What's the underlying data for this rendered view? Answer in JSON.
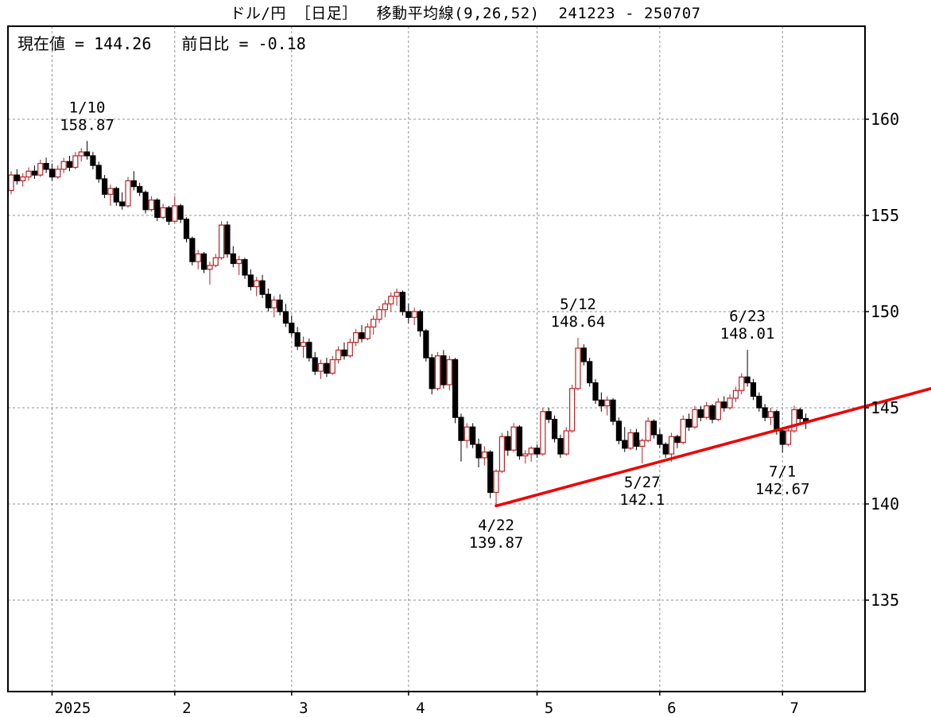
{
  "title": "ドル/円 ［日足］  移動平均線(9,26,52)  241223 - 250707",
  "info": {
    "current_label": "現在値",
    "equals": "=",
    "current_value": "144.26",
    "change_label": "前日比",
    "change_value": "-0.18"
  },
  "chart_data": {
    "type": "candlestick",
    "instrument": "ドル/円",
    "timeframe": "日足",
    "ma_params": "9,26,52",
    "date_range": "241223 - 250707",
    "grid": true,
    "ylim": [
      130.3,
      164.8
    ],
    "y_ticks": [
      160,
      155,
      150,
      145,
      140,
      135
    ],
    "x_ticks": [
      {
        "label": "2025",
        "index": 7
      },
      {
        "label": "2",
        "index": 28
      },
      {
        "label": "3",
        "index": 48
      },
      {
        "label": "4",
        "index": 68
      },
      {
        "label": "5",
        "index": 90
      },
      {
        "label": "6",
        "index": 111
      },
      {
        "label": "7",
        "index": 132
      }
    ],
    "candles": [
      [
        156.3,
        157.3,
        156.1,
        157.1
      ],
      [
        157.1,
        157.4,
        156.6,
        156.8
      ],
      [
        156.8,
        157.2,
        156.5,
        157.0
      ],
      [
        157.0,
        157.5,
        156.8,
        157.3
      ],
      [
        157.3,
        157.6,
        156.9,
        157.1
      ],
      [
        157.1,
        157.9,
        157.0,
        157.7
      ],
      [
        157.7,
        158.0,
        157.2,
        157.4
      ],
      [
        157.4,
        157.7,
        156.8,
        157.0
      ],
      [
        157.0,
        157.6,
        156.9,
        157.4
      ],
      [
        157.4,
        158.0,
        157.2,
        157.8
      ],
      [
        157.8,
        158.1,
        157.3,
        157.5
      ],
      [
        157.5,
        158.3,
        157.4,
        158.1
      ],
      [
        158.1,
        158.5,
        157.8,
        158.3
      ],
      [
        158.3,
        158.87,
        157.9,
        158.1
      ],
      [
        158.1,
        158.3,
        157.4,
        157.6
      ],
      [
        157.6,
        157.8,
        156.7,
        156.9
      ],
      [
        156.9,
        157.1,
        155.9,
        156.1
      ],
      [
        156.1,
        156.6,
        155.5,
        156.4
      ],
      [
        156.4,
        156.5,
        155.5,
        155.7
      ],
      [
        155.7,
        156.2,
        155.3,
        155.5
      ],
      [
        155.5,
        157.0,
        155.4,
        156.8
      ],
      [
        156.8,
        157.3,
        156.3,
        156.5
      ],
      [
        156.5,
        156.7,
        156.0,
        156.2
      ],
      [
        156.2,
        156.3,
        155.1,
        155.3
      ],
      [
        155.3,
        156.0,
        155.2,
        155.8
      ],
      [
        155.8,
        155.9,
        154.7,
        154.9
      ],
      [
        154.9,
        155.6,
        154.8,
        155.4
      ],
      [
        155.4,
        155.5,
        154.5,
        154.7
      ],
      [
        154.7,
        156.0,
        154.6,
        155.5
      ],
      [
        155.5,
        155.6,
        154.6,
        154.8
      ],
      [
        154.8,
        154.9,
        153.6,
        153.8
      ],
      [
        153.8,
        153.9,
        152.4,
        152.6
      ],
      [
        152.6,
        153.2,
        152.2,
        153.0
      ],
      [
        153.0,
        153.1,
        152.0,
        152.2
      ],
      [
        152.2,
        152.6,
        151.4,
        152.4
      ],
      [
        152.4,
        153.0,
        152.3,
        152.8
      ],
      [
        152.8,
        154.7,
        152.7,
        154.5
      ],
      [
        154.5,
        154.7,
        152.8,
        153.0
      ],
      [
        153.0,
        153.4,
        152.3,
        152.5
      ],
      [
        152.5,
        152.9,
        151.9,
        152.7
      ],
      [
        152.7,
        152.8,
        151.7,
        151.9
      ],
      [
        151.9,
        152.2,
        151.1,
        151.3
      ],
      [
        151.3,
        151.8,
        150.8,
        151.6
      ],
      [
        151.6,
        151.9,
        150.7,
        150.9
      ],
      [
        150.9,
        151.2,
        150.0,
        150.2
      ],
      [
        150.2,
        150.8,
        149.7,
        150.6
      ],
      [
        150.6,
        150.9,
        149.8,
        150.0
      ],
      [
        150.0,
        150.4,
        149.2,
        149.4
      ],
      [
        149.4,
        149.8,
        148.7,
        148.9
      ],
      [
        148.9,
        149.2,
        148.0,
        148.2
      ],
      [
        148.2,
        148.7,
        147.6,
        148.4
      ],
      [
        148.4,
        148.6,
        147.4,
        147.6
      ],
      [
        147.6,
        147.9,
        146.7,
        146.9
      ],
      [
        146.9,
        147.5,
        146.5,
        147.3
      ],
      [
        147.3,
        147.6,
        146.6,
        146.8
      ],
      [
        146.8,
        147.7,
        146.7,
        147.5
      ],
      [
        147.5,
        148.2,
        147.3,
        148.0
      ],
      [
        148.0,
        148.4,
        147.5,
        147.7
      ],
      [
        147.7,
        148.6,
        147.6,
        148.4
      ],
      [
        148.4,
        149.1,
        148.2,
        148.9
      ],
      [
        148.9,
        149.3,
        148.4,
        148.6
      ],
      [
        148.6,
        149.4,
        148.5,
        149.2
      ],
      [
        149.2,
        149.8,
        148.8,
        149.6
      ],
      [
        149.6,
        150.3,
        149.4,
        150.1
      ],
      [
        150.1,
        150.6,
        149.7,
        150.4
      ],
      [
        150.4,
        151.0,
        150.0,
        150.8
      ],
      [
        150.8,
        151.2,
        150.3,
        151.0
      ],
      [
        151.0,
        151.1,
        149.8,
        150.0
      ],
      [
        150.0,
        150.4,
        149.4,
        149.7
      ],
      [
        149.7,
        150.2,
        149.3,
        150.0
      ],
      [
        150.0,
        150.1,
        148.7,
        149.0
      ],
      [
        149.0,
        149.1,
        147.4,
        147.6
      ],
      [
        147.6,
        147.8,
        145.7,
        146.0
      ],
      [
        146.0,
        147.9,
        145.9,
        147.7
      ],
      [
        147.7,
        148.0,
        146.0,
        146.2
      ],
      [
        146.2,
        147.7,
        145.9,
        147.5
      ],
      [
        147.5,
        147.6,
        144.2,
        144.5
      ],
      [
        144.5,
        144.7,
        142.2,
        143.3
      ],
      [
        143.3,
        144.2,
        142.9,
        144.0
      ],
      [
        144.0,
        144.2,
        142.9,
        143.1
      ],
      [
        143.1,
        143.4,
        141.9,
        142.4
      ],
      [
        142.4,
        143.0,
        142.0,
        142.7
      ],
      [
        142.7,
        142.8,
        140.3,
        140.6
      ],
      [
        140.6,
        141.8,
        139.87,
        141.7
      ],
      [
        141.7,
        143.7,
        141.6,
        143.5
      ],
      [
        143.5,
        143.8,
        142.5,
        142.8
      ],
      [
        142.8,
        144.2,
        142.7,
        144.0
      ],
      [
        144.0,
        144.1,
        142.3,
        142.5
      ],
      [
        142.5,
        142.8,
        142.1,
        142.6
      ],
      [
        142.6,
        143.0,
        142.2,
        142.9
      ],
      [
        142.9,
        143.1,
        142.4,
        142.6
      ],
      [
        142.6,
        145.0,
        142.5,
        144.8
      ],
      [
        144.8,
        145.0,
        144.2,
        144.4
      ],
      [
        144.4,
        144.6,
        143.2,
        143.4
      ],
      [
        143.4,
        143.6,
        142.4,
        142.6
      ],
      [
        142.6,
        144.0,
        142.5,
        143.8
      ],
      [
        143.8,
        146.2,
        143.7,
        146.0
      ],
      [
        146.0,
        148.64,
        145.9,
        148.1
      ],
      [
        148.1,
        148.3,
        147.2,
        147.4
      ],
      [
        147.4,
        147.6,
        146.1,
        146.3
      ],
      [
        146.3,
        146.5,
        145.2,
        145.4
      ],
      [
        145.4,
        145.8,
        144.8,
        145.1
      ],
      [
        145.1,
        145.6,
        144.6,
        145.4
      ],
      [
        145.4,
        145.5,
        144.1,
        144.3
      ],
      [
        144.3,
        144.5,
        143.1,
        143.3
      ],
      [
        143.3,
        144.0,
        142.7,
        142.9
      ],
      [
        142.9,
        143.9,
        142.8,
        143.7
      ],
      [
        143.7,
        143.9,
        142.8,
        143.0
      ],
      [
        143.0,
        143.4,
        142.1,
        143.3
      ],
      [
        143.3,
        144.5,
        143.2,
        144.3
      ],
      [
        144.3,
        144.4,
        143.4,
        143.6
      ],
      [
        143.6,
        143.9,
        142.9,
        143.1
      ],
      [
        143.1,
        143.2,
        142.4,
        142.6
      ],
      [
        142.6,
        143.7,
        142.2,
        143.5
      ],
      [
        143.5,
        143.6,
        142.9,
        143.2
      ],
      [
        143.2,
        144.6,
        143.1,
        144.4
      ],
      [
        144.4,
        144.7,
        143.8,
        144.0
      ],
      [
        144.0,
        145.1,
        143.9,
        144.9
      ],
      [
        144.9,
        145.1,
        144.3,
        144.5
      ],
      [
        144.5,
        145.3,
        144.4,
        145.1
      ],
      [
        145.1,
        145.2,
        144.2,
        144.4
      ],
      [
        144.4,
        145.5,
        144.3,
        145.3
      ],
      [
        145.3,
        145.6,
        144.8,
        145.0
      ],
      [
        145.0,
        145.7,
        144.9,
        145.5
      ],
      [
        145.5,
        146.1,
        145.3,
        145.9
      ],
      [
        145.9,
        146.8,
        145.7,
        146.6
      ],
      [
        146.6,
        148.01,
        146.1,
        146.3
      ],
      [
        146.3,
        146.5,
        145.4,
        145.6
      ],
      [
        145.6,
        145.8,
        144.8,
        145.0
      ],
      [
        145.0,
        145.2,
        144.3,
        144.5
      ],
      [
        144.5,
        145.0,
        144.1,
        144.8
      ],
      [
        144.8,
        144.9,
        143.6,
        143.8
      ],
      [
        143.8,
        143.9,
        142.67,
        143.1
      ],
      [
        143.1,
        144.0,
        143.0,
        143.8
      ],
      [
        143.8,
        145.1,
        143.7,
        144.9
      ],
      [
        144.9,
        145.0,
        144.2,
        144.44
      ],
      [
        144.44,
        144.7,
        143.9,
        144.26
      ]
    ],
    "annotations": [
      {
        "date": "1/10",
        "value": "158.87",
        "index": 13,
        "price": 158.87,
        "position": "above"
      },
      {
        "date": "5/12",
        "value": "148.64",
        "index": 97,
        "price": 148.64,
        "position": "above"
      },
      {
        "date": "6/23",
        "value": "148.01",
        "index": 126,
        "price": 148.01,
        "position": "above"
      },
      {
        "date": "4/22",
        "value": "139.87",
        "index": 83,
        "price": 139.87,
        "position": "below"
      },
      {
        "date": "5/27",
        "value": "142.1",
        "index": 108,
        "price": 142.1,
        "position": "below"
      },
      {
        "date": "7/1",
        "value": "142.67",
        "index": 132,
        "price": 142.67,
        "position": "below"
      }
    ],
    "trendline": {
      "start_index": 83,
      "start_price": 139.9,
      "end_price": 146.0
    },
    "colors": {
      "up_stroke": "#bb2222",
      "up_fill": "#ffffff",
      "down": "#000000",
      "trend": "#ee0000",
      "grid": "#909090",
      "border": "#000000"
    }
  }
}
